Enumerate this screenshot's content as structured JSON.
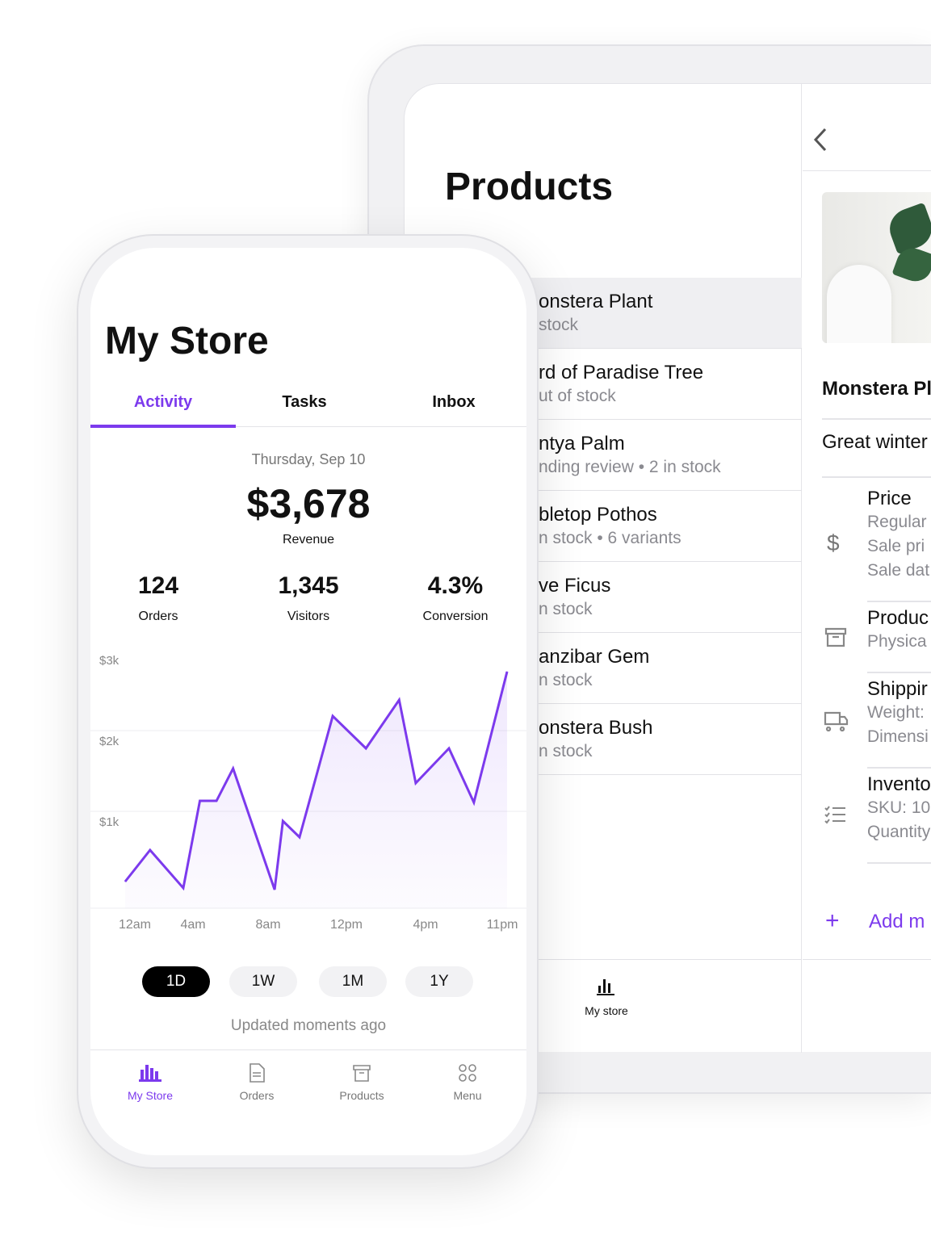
{
  "tablet": {
    "title": "Products",
    "products": [
      {
        "name": "onstera Plant",
        "sub": "stock",
        "selected": true
      },
      {
        "name": "rd of Paradise Tree",
        "sub": "ut of stock"
      },
      {
        "name": "ntya Palm",
        "sub": "nding review • 2 in stock"
      },
      {
        "name": "bletop Pothos",
        "sub": "n stock • 6 variants"
      },
      {
        "name": "ve Ficus",
        "sub": "n stock"
      },
      {
        "name": "anzibar Gem",
        "sub": "n stock"
      },
      {
        "name": "onstera Bush",
        "sub": "n stock"
      }
    ],
    "bottom_nav_label": "My store",
    "detail": {
      "title": "Monstera Pl",
      "description": "Great winter",
      "sections": [
        {
          "icon": "dollar-icon",
          "title": "Price",
          "lines": [
            "Regular",
            "Sale pri",
            "Sale dat"
          ]
        },
        {
          "icon": "archive-box-icon",
          "title": "Produc",
          "lines": [
            "Physica"
          ]
        },
        {
          "icon": "truck-icon",
          "title": "Shippir",
          "lines": [
            "Weight:",
            "Dimensi"
          ]
        },
        {
          "icon": "checklist-icon",
          "title": "Invento",
          "lines": [
            "SKU: 10",
            "Quantity"
          ]
        }
      ],
      "add_more_label": "Add m"
    }
  },
  "phone": {
    "title": "My Store",
    "tabs": [
      {
        "label": "Activity",
        "active": true
      },
      {
        "label": "Tasks"
      },
      {
        "label": "Inbox"
      }
    ],
    "date": "Thursday, Sep 10",
    "revenue": "$3,678",
    "revenue_label": "Revenue",
    "stats": [
      {
        "value": "124",
        "label": "Orders"
      },
      {
        "value": "1,345",
        "label": "Visitors"
      },
      {
        "value": "4.3%",
        "label": "Conversion"
      }
    ],
    "ranges": [
      {
        "label": "1D",
        "active": true
      },
      {
        "label": "1W"
      },
      {
        "label": "1M"
      },
      {
        "label": "1Y"
      }
    ],
    "updated": "Updated moments ago",
    "nav": [
      {
        "label": "My Store",
        "icon": "bar-chart-icon",
        "active": true
      },
      {
        "label": "Orders",
        "icon": "document-icon"
      },
      {
        "label": "Products",
        "icon": "archive-box-icon"
      },
      {
        "label": "Menu",
        "icon": "grid-circles-icon"
      }
    ]
  },
  "accent": "#7c3aed",
  "chart_data": {
    "type": "area",
    "x_tick_labels": [
      "12am",
      "4am",
      "8am",
      "12pm",
      "4pm",
      "11pm"
    ],
    "y_tick_labels": [
      "$1k",
      "$2k",
      "$3k"
    ],
    "ylim": [
      0,
      3
    ],
    "grid": true,
    "x": [
      0,
      1.5,
      3.5,
      4.5,
      5.5,
      6.5,
      9,
      9.5,
      10.5,
      12.5,
      14.5,
      16.5,
      17.5,
      19.5,
      21,
      23
    ],
    "values": [
      0.25,
      0.64,
      0.17,
      1.25,
      1.25,
      1.65,
      0.15,
      1.0,
      0.8,
      2.3,
      1.9,
      2.5,
      1.47,
      1.9,
      1.23,
      2.85
    ]
  }
}
